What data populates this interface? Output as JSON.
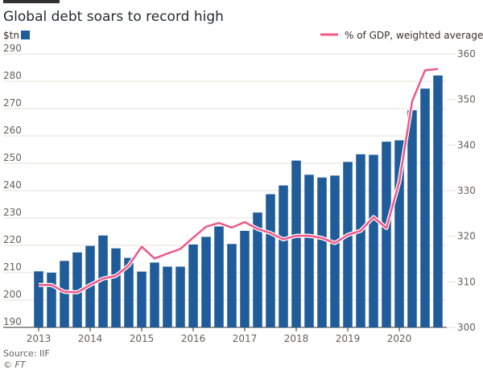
{
  "chart_data": {
    "type": "bar",
    "title": "Global debt soars to record high",
    "source": "Source: IIF",
    "credit": "© FT",
    "x_tick_labels": [
      "2013",
      "2014",
      "2015",
      "2016",
      "2017",
      "2018",
      "2019",
      "2020"
    ],
    "left_axis": {
      "unit_label": "$tn",
      "ylim": [
        190,
        290
      ],
      "ticks": [
        190,
        200,
        210,
        220,
        230,
        240,
        250,
        260,
        270,
        280,
        290
      ]
    },
    "right_axis": {
      "ylim": [
        300,
        360
      ],
      "ticks": [
        300,
        310,
        320,
        330,
        340,
        350,
        360
      ]
    },
    "grid": true,
    "legend_position": "top-right",
    "colors": {
      "bars": "#1f5c99",
      "line": "#f0588a",
      "grid": "#e5e0da",
      "text": "#33302e"
    },
    "series": [
      {
        "type": "bar",
        "axis": "left",
        "x": [
          "2013Q1",
          "2013Q2",
          "2013Q3",
          "2013Q4",
          "2014Q1",
          "2014Q2",
          "2014Q3",
          "2014Q4",
          "2015Q1",
          "2015Q2",
          "2015Q3",
          "2015Q4",
          "2016Q1",
          "2016Q2",
          "2016Q3",
          "2016Q4",
          "2017Q1",
          "2017Q2",
          "2017Q3",
          "2017Q4",
          "2018Q1",
          "2018Q2",
          "2018Q3",
          "2018Q4",
          "2019Q1",
          "2019Q2",
          "2019Q3",
          "2019Q4",
          "2020Q1",
          "2020Q2",
          "2020Q3",
          "2020Q4"
        ],
        "values": [
          210.5,
          210.0,
          214.3,
          217.4,
          219.8,
          223.6,
          218.9,
          215.4,
          210.4,
          213.7,
          212.2,
          212.2,
          220.3,
          223.1,
          226.9,
          220.5,
          225.3,
          232.0,
          238.7,
          241.9,
          251.0,
          245.8,
          244.8,
          245.5,
          250.5,
          253.3,
          253.1,
          257.9,
          258.4,
          269.4,
          277.3,
          282.1
        ]
      },
      {
        "type": "line",
        "axis": "right",
        "name": "% of GDP, weighted average",
        "x": [
          "2013Q1",
          "2013Q2",
          "2013Q3",
          "2013Q4",
          "2014Q1",
          "2014Q2",
          "2014Q3",
          "2014Q4",
          "2015Q1",
          "2015Q2",
          "2015Q3",
          "2015Q4",
          "2016Q1",
          "2016Q2",
          "2016Q3",
          "2016Q4",
          "2017Q1",
          "2017Q2",
          "2017Q3",
          "2017Q4",
          "2018Q1",
          "2018Q2",
          "2018Q3",
          "2018Q4",
          "2019Q1",
          "2019Q2",
          "2019Q3",
          "2019Q4",
          "2020Q1",
          "2020Q2",
          "2020Q3",
          "2020Q4"
        ],
        "values": [
          309.3,
          309.3,
          307.8,
          307.7,
          309.3,
          310.7,
          311.3,
          313.6,
          317.7,
          315.1,
          316.2,
          317.2,
          319.7,
          322.1,
          322.9,
          321.9,
          323.1,
          321.6,
          320.7,
          319.3,
          320.1,
          320.1,
          319.6,
          318.5,
          320.3,
          321.2,
          324.2,
          321.8,
          331.9,
          349.6,
          356.4,
          356.7
        ]
      }
    ]
  }
}
